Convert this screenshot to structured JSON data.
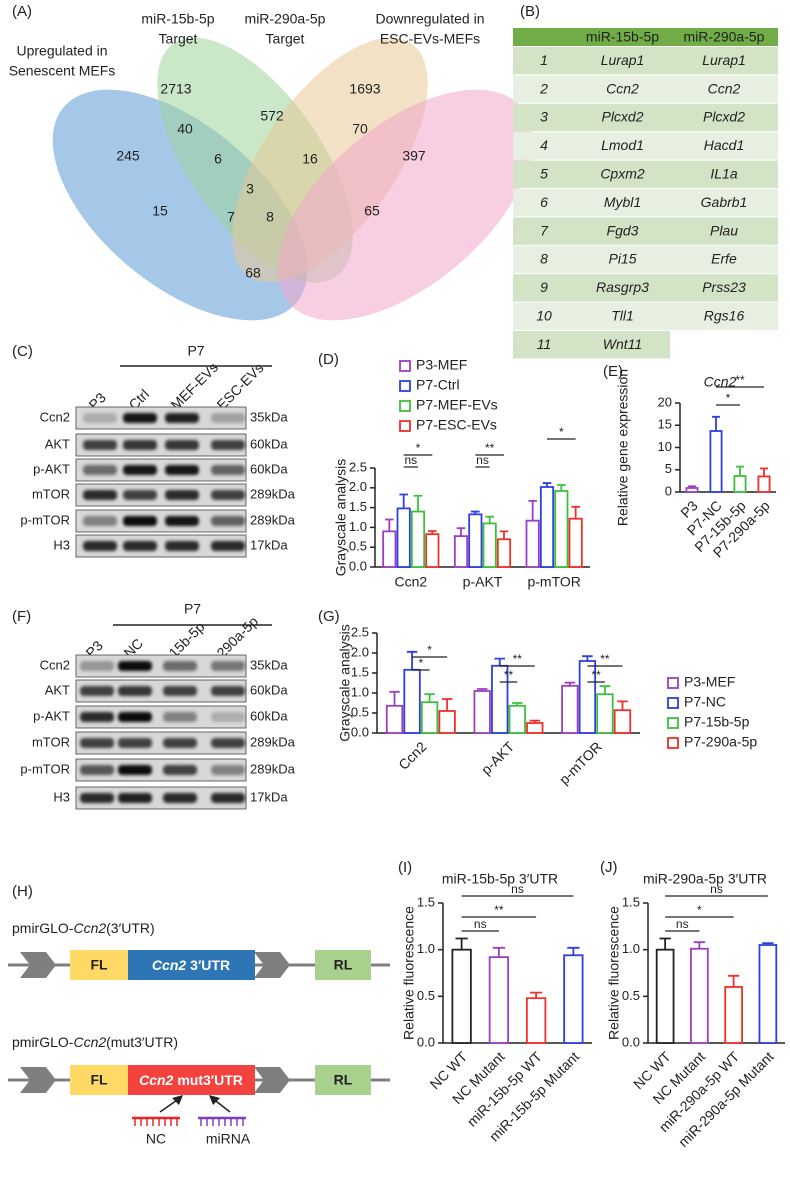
{
  "panel_labels": [
    "(A)",
    "(B)",
    "(C)",
    "(D)",
    "(E)",
    "(F)",
    "(G)",
    "(H)",
    "(I)",
    "(J)"
  ],
  "venn": {
    "sets": [
      {
        "lines": [
          "Upregulated in",
          "Senescent MEFs"
        ],
        "color": "#5b9bd5"
      },
      {
        "lines": [
          "miR-15b-5p",
          "Target"
        ],
        "color": "#9fd49a"
      },
      {
        "lines": [
          "miR-290a-5p",
          "Target"
        ],
        "color": "#e8c895"
      },
      {
        "lines": [
          "Downregulated in",
          "ESC-EVs-MEFs"
        ],
        "color": "#f2a8cb"
      }
    ],
    "regions": [
      {
        "value": 245,
        "color": "#222222"
      },
      {
        "value": 2713,
        "color": "#222222"
      },
      {
        "value": 1693,
        "color": "#222222"
      },
      {
        "value": 397,
        "color": "#222222"
      },
      {
        "value": 40,
        "color": "#222222"
      },
      {
        "value": 572,
        "color": "#222222"
      },
      {
        "value": 70,
        "color": "#222222"
      },
      {
        "value": 6,
        "color": "#222222"
      },
      {
        "value": 16,
        "color": "#222222"
      },
      {
        "value": 15,
        "color": "#222222"
      },
      {
        "value": 3,
        "color": "#e8252a"
      },
      {
        "value": 65,
        "color": "#222222"
      },
      {
        "value": 7,
        "color": "#e8252a"
      },
      {
        "value": 8,
        "color": "#e8252a"
      },
      {
        "value": 68,
        "color": "#222222"
      }
    ]
  },
  "table": {
    "header": [
      "miR-15b-5p",
      "miR-290a-5p"
    ],
    "header_color": "#70ad47",
    "highlight_color": "#e8252a",
    "rows": [
      {
        "index": 1,
        "cells": [
          "Lurap1",
          "Lurap1"
        ],
        "highlight": true
      },
      {
        "index": 2,
        "cells": [
          "Ccn2",
          "Ccn2"
        ],
        "highlight": true
      },
      {
        "index": 3,
        "cells": [
          "Plcxd2",
          "Plcxd2"
        ],
        "highlight": true
      },
      {
        "index": 4,
        "cells": [
          "Lmod1",
          "Hacd1"
        ],
        "highlight": false
      },
      {
        "index": 5,
        "cells": [
          "Cpxm2",
          "IL1a"
        ],
        "highlight": false
      },
      {
        "index": 6,
        "cells": [
          "Mybl1",
          "Gabrb1"
        ],
        "highlight": false
      },
      {
        "index": 7,
        "cells": [
          "Fgd3",
          "Plau"
        ],
        "highlight": false
      },
      {
        "index": 8,
        "cells": [
          "Pi15",
          "Erfe"
        ],
        "highlight": false
      },
      {
        "index": 9,
        "cells": [
          "Rasgrp3",
          "Prss23"
        ],
        "highlight": false
      },
      {
        "index": 10,
        "cells": [
          "Tll1",
          "Rgs16"
        ],
        "highlight": false
      },
      {
        "index": 11,
        "cells": [
          "Wnt11"
        ],
        "highlight": false
      }
    ]
  },
  "blots": [
    {
      "group": "P7",
      "lanes": [
        "P3",
        "Ctrl",
        "MEF-EVs",
        "ESC-EVs"
      ],
      "proteins": [
        "Ccn2",
        "AKT",
        "p-AKT",
        "mTOR",
        "p-mTOR",
        "H3"
      ],
      "sizes": [
        "35kDa",
        "60kDa",
        "60kDa",
        "289kDa",
        "289kDa",
        "17kDa"
      ]
    },
    {
      "group": "P7",
      "lanes": [
        "P3",
        "NC",
        "15b-5p",
        "290a-5p"
      ],
      "proteins": [
        "Ccn2",
        "AKT",
        "p-AKT",
        "mTOR",
        "p-mTOR",
        "H3"
      ],
      "sizes": [
        "35kDa",
        "60kDa",
        "60kDa",
        "289kDa",
        "289kDa",
        "17kDa"
      ]
    }
  ],
  "construct": {
    "rows": [
      {
        "title": [
          "pmirGLO-",
          "Ccn2",
          "(3′UTR)"
        ],
        "utr": [
          "Ccn2",
          "3′UTR"
        ],
        "utr_color": "#2e75b6"
      },
      {
        "title": [
          "pmirGLO-",
          "Ccn2",
          "(mut3′UTR)"
        ],
        "utr": [
          "Ccn2",
          "mut3′UTR"
        ],
        "utr_color": "#f4433e"
      }
    ],
    "fl": "FL",
    "rl": "RL",
    "binders": [
      "NC",
      "miRNA"
    ]
  },
  "chart_data": [
    {
      "type": "bar",
      "y_label": "Grayscale analysis",
      "categories": [
        "Ccn2",
        "p-AKT",
        "p-mTOR"
      ],
      "series": [
        {
          "name": "P3-MEF",
          "color": "#9b3fc0",
          "values": [
            0.9,
            0.78,
            1.17
          ],
          "errors": [
            0.3,
            0.2,
            0.5
          ]
        },
        {
          "name": "P7-Ctrl",
          "color": "#2f3fe0",
          "values": [
            1.48,
            1.33,
            2.02
          ],
          "errors": [
            0.35,
            0.07,
            0.1
          ]
        },
        {
          "name": "P7-MEF-EVs",
          "color": "#3cc03c",
          "values": [
            1.4,
            1.1,
            1.92
          ],
          "errors": [
            0.4,
            0.17,
            0.15
          ]
        },
        {
          "name": "P7-ESC-EVs",
          "color": "#f0302a",
          "values": [
            0.83,
            0.7,
            1.22
          ],
          "errors": [
            0.08,
            0.2,
            0.3
          ]
        }
      ],
      "ylim": [
        0,
        2.5
      ],
      "yticks": [
        {
          "value": 0,
          "label": "0.0"
        },
        0.5,
        {
          "value": 1,
          "label": "1.0"
        },
        1.5,
        {
          "value": 2,
          "label": "2.0"
        },
        2.5
      ],
      "legend": "top",
      "annotations": [
        "*",
        "ns",
        "**",
        "ns",
        "*"
      ]
    },
    {
      "type": "bar",
      "title": "Ccn2",
      "y_label": "Relative gene expression",
      "categories": [
        "P3",
        "P7-NC",
        "P7-15b-5p",
        "P7-290a-5p"
      ],
      "values": [
        0.9,
        13.7,
        3.6,
        3.5
      ],
      "errors": [
        0.4,
        3.2,
        2.1,
        1.8
      ],
      "colors": [
        "#9b3fc0",
        "#2f3fe0",
        "#3cc03c",
        "#f0302a"
      ],
      "ylim": [
        0,
        20
      ],
      "yticks": [
        0,
        5,
        10,
        15,
        20
      ],
      "annotations": [
        "*",
        "**"
      ]
    },
    {
      "type": "bar",
      "y_label": "Grayscale analysis",
      "categories": [
        "Ccn2",
        "p-AKT",
        "p-mTOR"
      ],
      "series": [
        {
          "name": "P3-MEF",
          "color": "#9b3fc0",
          "values": [
            0.68,
            1.05,
            1.18
          ],
          "errors": [
            0.35,
            0.05,
            0.08
          ]
        },
        {
          "name": "P7-NC",
          "color": "#2f3fe0",
          "values": [
            1.58,
            1.68,
            1.8
          ],
          "errors": [
            0.45,
            0.18,
            0.12
          ]
        },
        {
          "name": "P7-15b-5p",
          "color": "#3cc03c",
          "values": [
            0.77,
            0.68,
            0.97
          ],
          "errors": [
            0.2,
            0.07,
            0.2
          ]
        },
        {
          "name": "P7-290a-5p",
          "color": "#f0302a",
          "values": [
            0.55,
            0.25,
            0.57
          ],
          "errors": [
            0.3,
            0.06,
            0.22
          ]
        }
      ],
      "ylim": [
        0,
        2.5
      ],
      "yticks": [
        {
          "value": 0,
          "label": "0.0"
        },
        0.5,
        {
          "value": 1,
          "label": "1.0"
        },
        1.5,
        {
          "value": 2,
          "label": "2.0"
        },
        2.5
      ],
      "legend": "right",
      "annotations": [
        "*",
        "*",
        "**",
        "**",
        "**",
        "**"
      ]
    },
    {
      "type": "bar",
      "title": "miR-15b-5p 3′UTR",
      "y_label": "Relative fluorescence",
      "categories": [
        "NC WT",
        "NC Mutant",
        "miR-15b-5p WT",
        "miR-15b-5p Mutant"
      ],
      "values": [
        1.0,
        0.92,
        0.48,
        0.94
      ],
      "errors": [
        0.12,
        0.1,
        0.06,
        0.08
      ],
      "colors": [
        "#222222",
        "#9b3fc0",
        "#f0302a",
        "#2f3fe0"
      ],
      "ylim": [
        0,
        1.5
      ],
      "yticks": [
        {
          "value": 0,
          "label": "0.0"
        },
        0.5,
        {
          "value": 1,
          "label": "1.0"
        },
        1.5
      ],
      "annotations": [
        "ns",
        "**",
        "ns"
      ]
    },
    {
      "type": "bar",
      "title": "miR-290a-5p 3′UTR",
      "y_label": "Relative fluorescence",
      "categories": [
        "NC WT",
        "NC Mutant",
        "miR-290a-5p WT",
        "miR-290a-5p Mutant"
      ],
      "values": [
        1.0,
        1.01,
        0.6,
        1.05
      ],
      "errors": [
        0.12,
        0.07,
        0.12,
        0.02
      ],
      "colors": [
        "#222222",
        "#9b3fc0",
        "#f0302a",
        "#2f3fe0"
      ],
      "ylim": [
        0,
        1.5
      ],
      "yticks": [
        {
          "value": 0,
          "label": "0.0"
        },
        0.5,
        {
          "value": 1,
          "label": "1.0"
        },
        1.5
      ],
      "annotations": [
        "ns",
        "*",
        "ns"
      ]
    }
  ]
}
